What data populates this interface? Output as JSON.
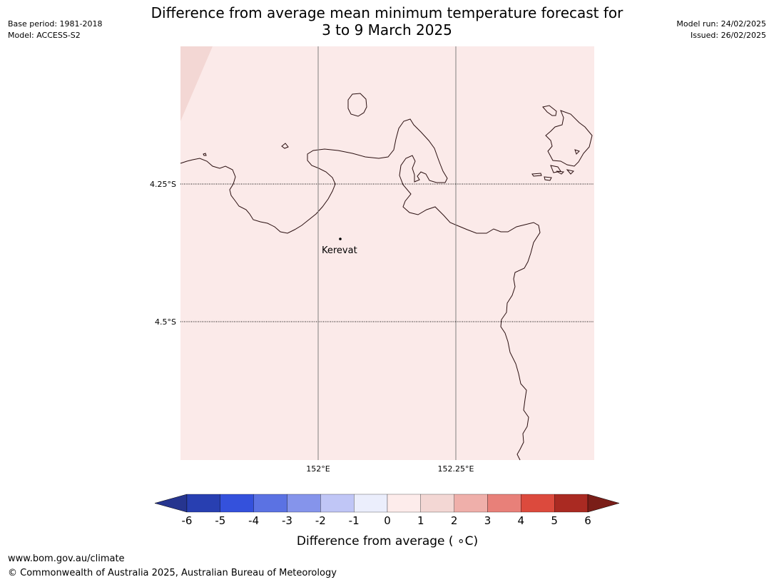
{
  "header": {
    "title_line1": "Difference from average mean minimum temperature forecast for",
    "title_line2": "3 to 9 March 2025",
    "base_period": "Base period: 1981-2018",
    "model": "Model: ACCESS-S2",
    "model_run": "Model run: 24/02/2025",
    "issued": "Issued: 26/02/2025"
  },
  "map": {
    "fill_color": "#fbeae9",
    "corner_fill_color": "#f3d7d4",
    "coast_color": "#2a0f10",
    "place": {
      "name": "Kerevat"
    },
    "lat_labels": [
      "4.25°S",
      "4.5°S"
    ],
    "lon_labels": [
      "152°E",
      "152.25°E"
    ]
  },
  "legend": {
    "label": "Difference from average ( ∘C)",
    "ticks": [
      "-6",
      "-5",
      "-4",
      "-3",
      "-2",
      "-1",
      "0",
      "1",
      "2",
      "3",
      "4",
      "5",
      "6"
    ],
    "colors": [
      "#26358f",
      "#283fb1",
      "#3451dc",
      "#5b72e3",
      "#8594eb",
      "#c0c6f6",
      "#ebeefc",
      "#fdeceb",
      "#f3d7d4",
      "#efafaa",
      "#e88079",
      "#dc4a3d",
      "#aa2a22",
      "#7a1e18"
    ]
  },
  "footer": {
    "url": "www.bom.gov.au/climate",
    "copyright": "© Commonwealth of Australia 2025, Australian Bureau of Meteorology"
  }
}
